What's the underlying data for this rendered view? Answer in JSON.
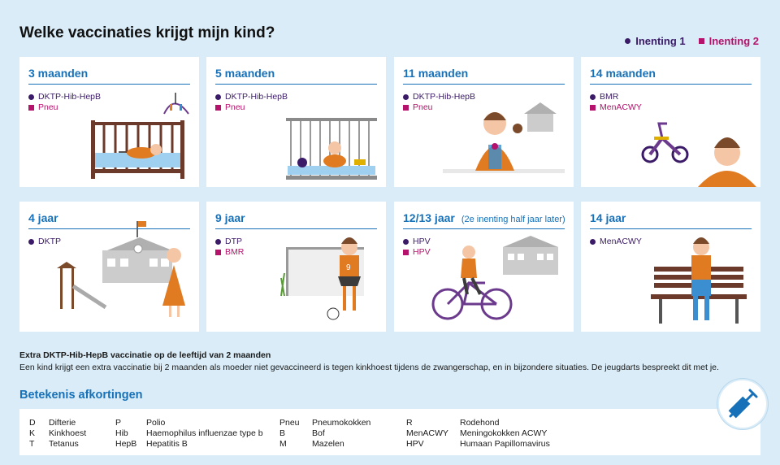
{
  "title": "Welke vaccinaties krijgt mijn kind?",
  "legend": [
    {
      "label": "Inenting 1",
      "color": "#3b1b67",
      "shape": "circle"
    },
    {
      "label": "Inenting 2",
      "color": "#b5126b",
      "shape": "square"
    }
  ],
  "cards": [
    {
      "title": "3 maanden",
      "note": "",
      "vaccines": [
        {
          "name": "DKTP-Hib-HepB",
          "dose": 1
        },
        {
          "name": "Pneu",
          "dose": 2
        }
      ],
      "illustration": "crib-baby"
    },
    {
      "title": "5 maanden",
      "note": "",
      "vaccines": [
        {
          "name": "DKTP-Hib-HepB",
          "dose": 1
        },
        {
          "name": "Pneu",
          "dose": 2
        }
      ],
      "illustration": "playpen-baby"
    },
    {
      "title": "11 maanden",
      "note": "",
      "vaccines": [
        {
          "name": "DKTP-Hib-HepB",
          "dose": 1
        },
        {
          "name": "Pneu",
          "dose": 2
        }
      ],
      "illustration": "sitting-toddler"
    },
    {
      "title": "14 maanden",
      "note": "",
      "vaccines": [
        {
          "name": "BMR",
          "dose": 1
        },
        {
          "name": "MenACWY",
          "dose": 2
        }
      ],
      "illustration": "tricycle-toddler"
    },
    {
      "title": "4 jaar",
      "note": "",
      "vaccines": [
        {
          "name": "DKTP",
          "dose": 1
        }
      ],
      "illustration": "school-girl"
    },
    {
      "title": "9 jaar",
      "note": "",
      "vaccines": [
        {
          "name": "DTP",
          "dose": 1
        },
        {
          "name": "BMR",
          "dose": 2
        }
      ],
      "illustration": "football-girl"
    },
    {
      "title": "12/13 jaar",
      "note": "(2e inenting half jaar later)",
      "vaccines": [
        {
          "name": "HPV",
          "dose": 1
        },
        {
          "name": "HPV",
          "dose": 2
        }
      ],
      "illustration": "cycling-girl"
    },
    {
      "title": "14 jaar",
      "note": "",
      "vaccines": [
        {
          "name": "MenACWY",
          "dose": 1
        }
      ],
      "illustration": "bench-teen"
    }
  ],
  "extra": {
    "title": "Extra DKTP-Hib-HepB vaccinatie op de leeftijd van 2 maanden",
    "text": "Een kind krijgt een extra vaccinatie bij 2 maanden als moeder niet gevaccineerd is tegen kinkhoest tijdens de zwangerschap, en in bijzondere situaties. De jeugdarts bespreekt dit met je."
  },
  "abbreviations": {
    "title": "Betekenis afkortingen",
    "columns": [
      [
        {
          "code": "D",
          "meaning": "Difterie"
        },
        {
          "code": "K",
          "meaning": "Kinkhoest"
        },
        {
          "code": "T",
          "meaning": "Tetanus"
        }
      ],
      [
        {
          "code": "P",
          "meaning": "Polio"
        },
        {
          "code": "Hib",
          "meaning": "Haemophilus influenzae type b"
        },
        {
          "code": "HepB",
          "meaning": "Hepatitis B"
        }
      ],
      [
        {
          "code": "Pneu",
          "meaning": "Pneumokokken"
        },
        {
          "code": "B",
          "meaning": "Bof"
        },
        {
          "code": "M",
          "meaning": "Mazelen"
        }
      ],
      [
        {
          "code": "R",
          "meaning": "Rodehond"
        },
        {
          "code": "MenACWY",
          "meaning": "Meningokokken ACWY"
        },
        {
          "code": "HPV",
          "meaning": "Humaan Papillomavirus"
        }
      ]
    ]
  },
  "icon": "syringe-icon"
}
